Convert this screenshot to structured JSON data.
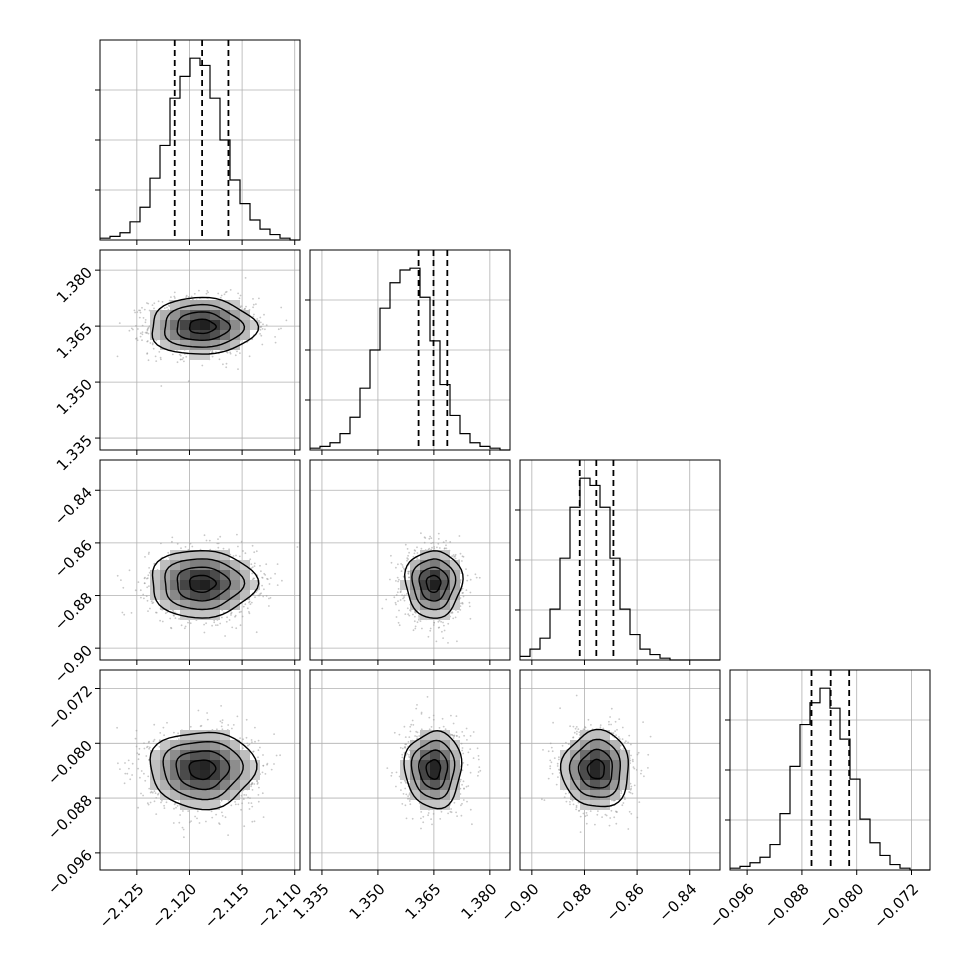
{
  "chart_data": {
    "type": "corner",
    "n_params": 4,
    "parameters": [
      {
        "range": [
          -2.1285,
          -2.1095
        ],
        "ticks": [
          "-2.125",
          "-2.120",
          "-2.115",
          "-2.110"
        ],
        "tick_values": [
          -2.125,
          -2.12,
          -2.115,
          -2.11
        ],
        "quantiles": [
          -2.1214,
          -2.1188,
          -2.1163
        ],
        "median": -2.1188,
        "sigma": 0.0025
      },
      {
        "range": [
          1.3318,
          1.3854
        ],
        "ticks": [
          "1.335",
          "1.350",
          "1.365",
          "1.380"
        ],
        "tick_values": [
          1.335,
          1.35,
          1.365,
          1.38
        ],
        "quantiles": [
          1.3609,
          1.3649,
          1.3686
        ],
        "median": 1.3649,
        "sigma": 0.0038
      },
      {
        "range": [
          -0.9045,
          -0.8285
        ],
        "ticks": [
          "-0.90",
          "-0.88",
          "-0.86",
          "-0.84"
        ],
        "tick_values": [
          -0.9,
          -0.88,
          -0.86,
          -0.84
        ],
        "quantiles": [
          -0.8818,
          -0.8755,
          -0.869
        ],
        "median": -0.8755,
        "sigma": 0.0064
      },
      {
        "range": [
          -0.0985,
          -0.0693
        ],
        "ticks": [
          "-0.096",
          "-0.088",
          "-0.080",
          "-0.072"
        ],
        "tick_values": [
          -0.096,
          -0.088,
          -0.08,
          -0.072
        ],
        "quantiles": [
          -0.0866,
          -0.0838,
          -0.0811
        ],
        "median": -0.0838,
        "sigma": 0.0028
      }
    ],
    "histograms": [
      {
        "bins": 20,
        "counts": [
          1,
          2,
          4,
          10,
          18,
          34,
          52,
          78,
          90,
          100,
          96,
          78,
          55,
          33,
          20,
          11,
          6,
          3,
          1,
          0
        ]
      },
      {
        "bins": 20,
        "counts": [
          1,
          2,
          4,
          9,
          18,
          34,
          55,
          78,
          92,
          99,
          100,
          84,
          60,
          36,
          19,
          9,
          4,
          2,
          1,
          0
        ]
      },
      {
        "bins": 20,
        "counts": [
          2,
          6,
          12,
          28,
          56,
          84,
          100,
          96,
          84,
          56,
          28,
          14,
          6,
          3,
          1,
          0,
          0,
          0,
          0,
          0
        ]
      },
      {
        "bins": 20,
        "counts": [
          1,
          2,
          4,
          7,
          14,
          31,
          57,
          80,
          92,
          100,
          89,
          72,
          50,
          28,
          15,
          8,
          3,
          1,
          0,
          0
        ]
      }
    ],
    "contour_sigma_levels": [
      0.5,
      1.0,
      1.5,
      2.0
    ],
    "grid": true,
    "colors": {
      "hist": "#000000",
      "contour": "#000000",
      "points": "#9a9a9a",
      "grid": "#b0b0b0",
      "quantile_line": "#000000"
    }
  }
}
